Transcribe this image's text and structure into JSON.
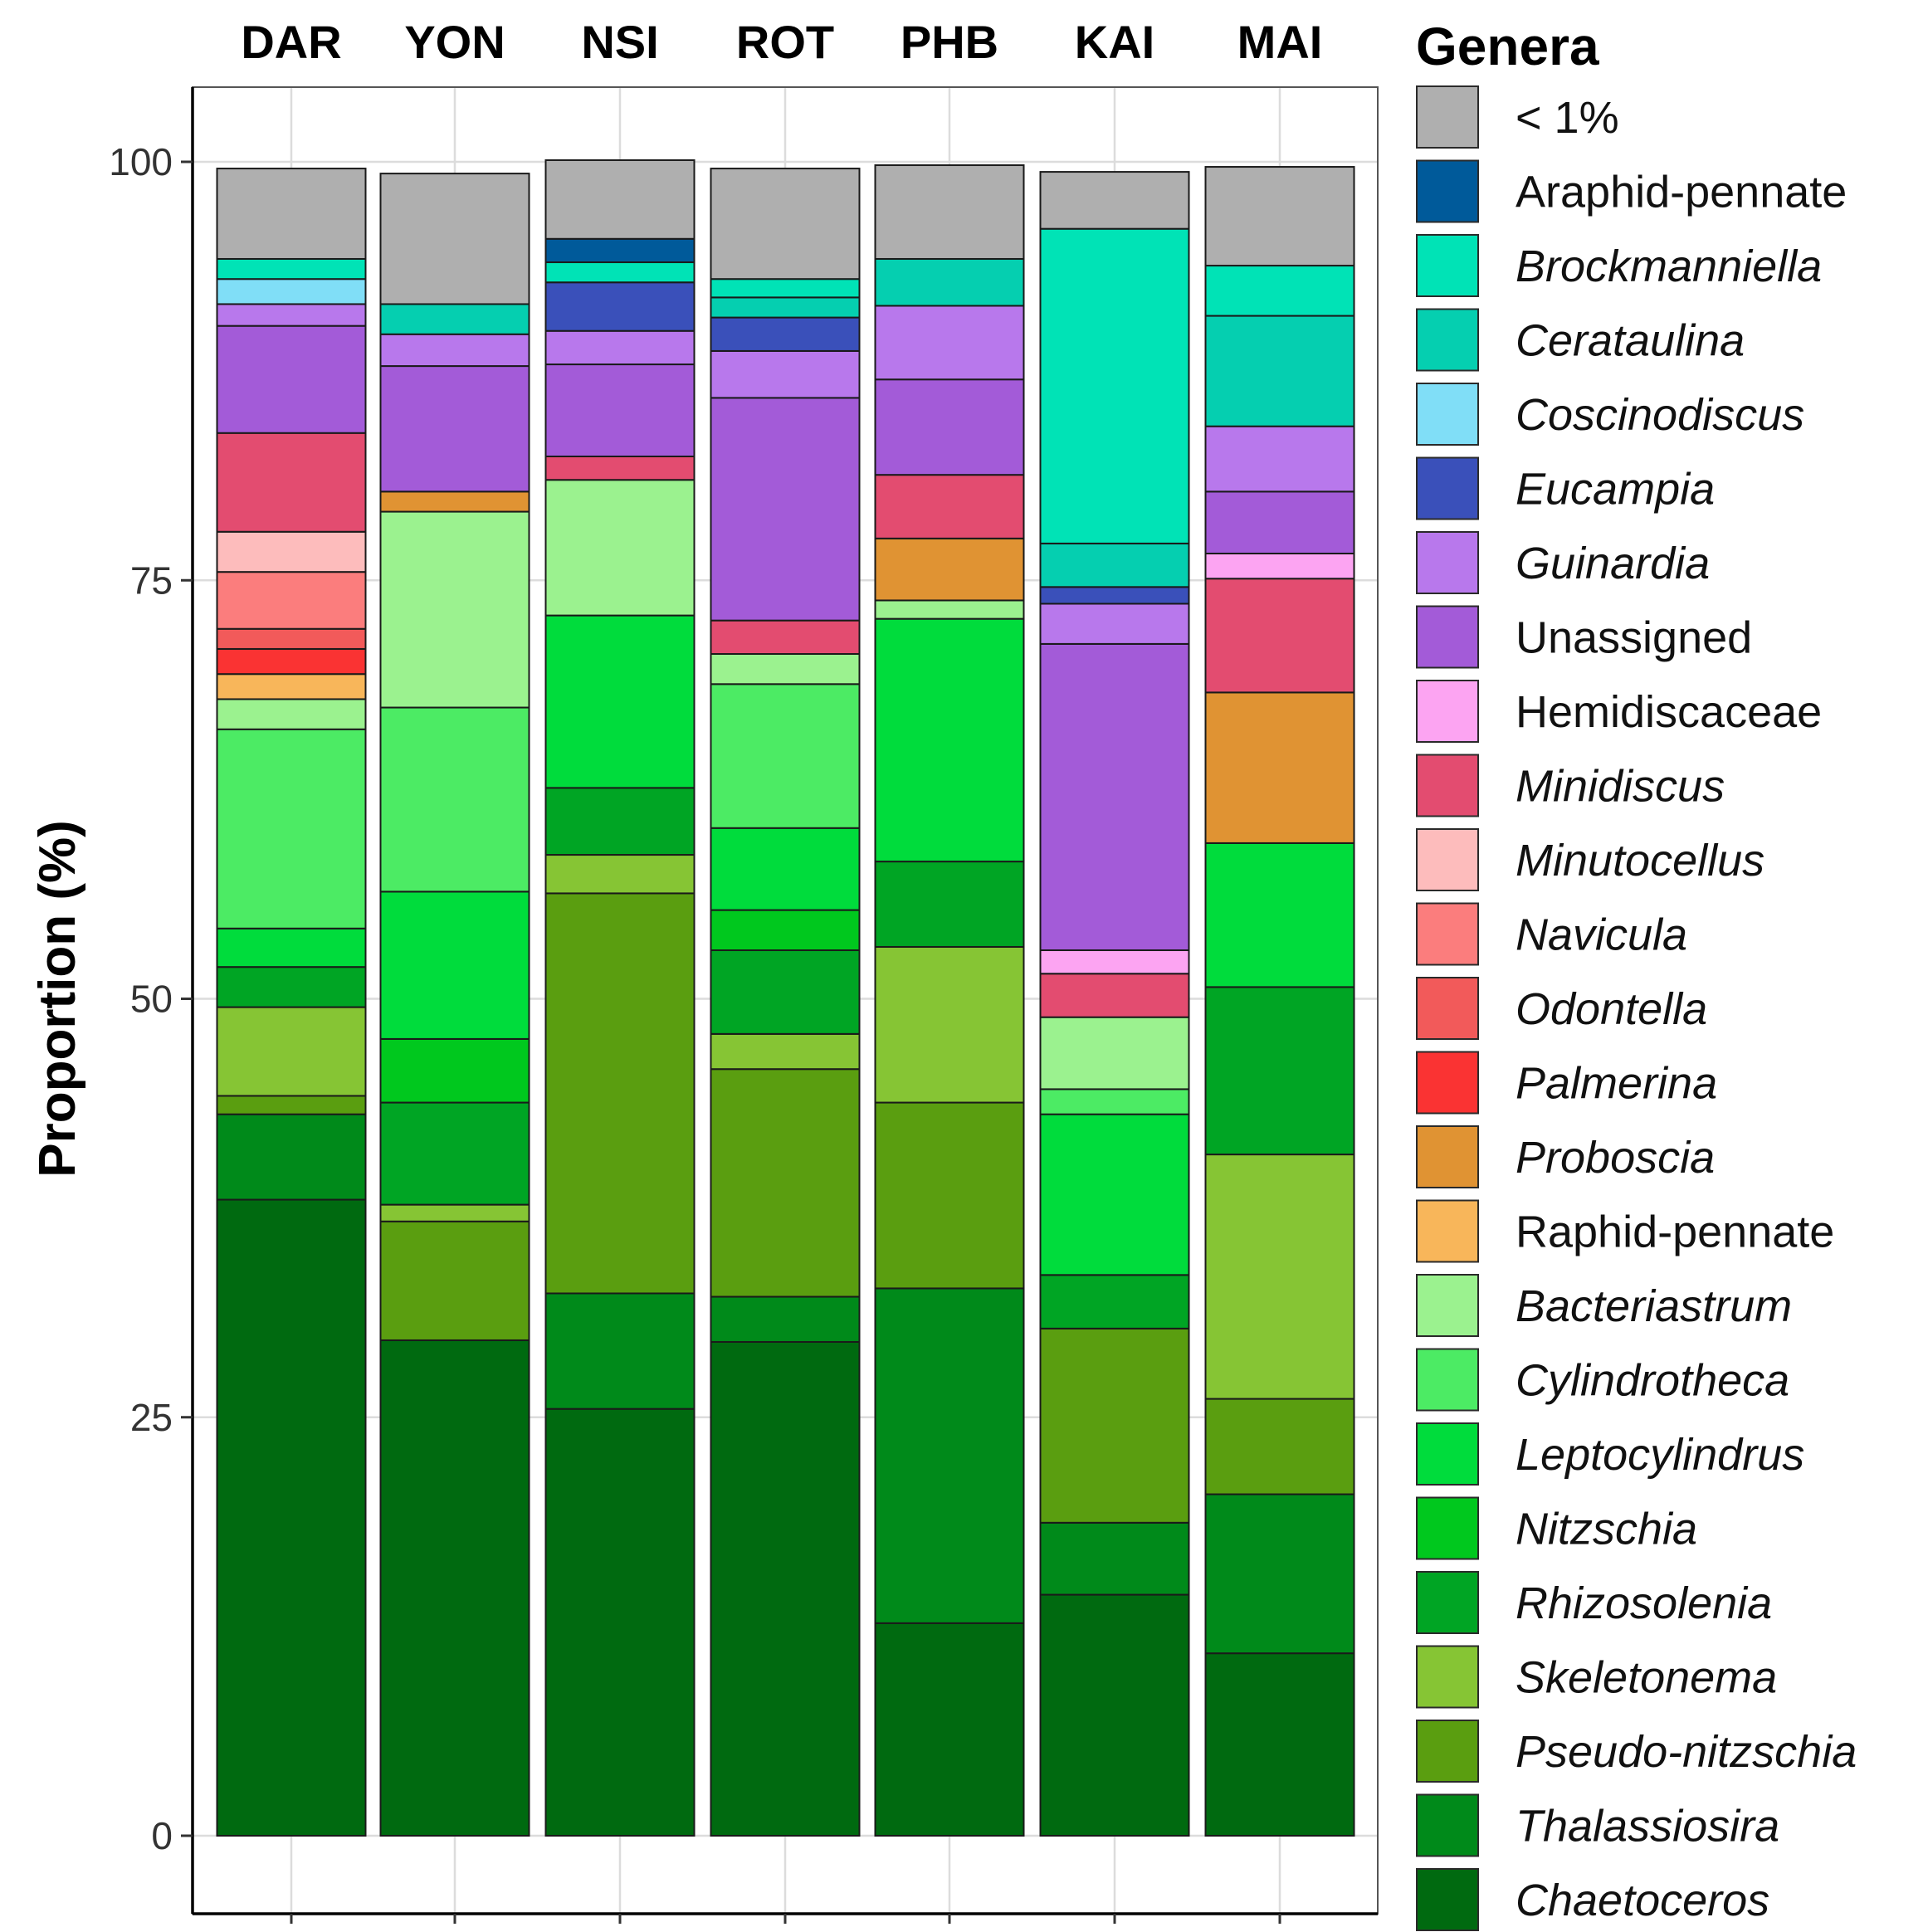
{
  "chart_data": {
    "type": "bar",
    "stacked": true,
    "title": "",
    "xlabel": "",
    "ylabel": "Proportion (%)",
    "ylim": [
      -4.5,
      104.5
    ],
    "yticks": [
      "0",
      "25",
      "50",
      "75",
      "100"
    ],
    "grid": true,
    "legend": {
      "title": "Genera",
      "position": "right"
    },
    "categories": [
      "DAR",
      "YON",
      "NSI",
      "ROT",
      "PHB",
      "KAI",
      "MAI"
    ],
    "series": [
      {
        "name": "Chaetoceros",
        "italic": true,
        "color": "#006a10",
        "values": [
          38.0,
          29.6,
          25.5,
          29.5,
          12.7,
          14.4,
          10.9
        ]
      },
      {
        "name": "Thalassiosira",
        "italic": true,
        "color": "#008a1a",
        "values": [
          5.1,
          0.0,
          6.9,
          2.7,
          20.0,
          4.3,
          9.5
        ]
      },
      {
        "name": "Pseudo-nitzschia",
        "italic": true,
        "color": "#5a9e10",
        "values": [
          1.1,
          7.1,
          23.9,
          13.6,
          11.1,
          11.6,
          5.7
        ]
      },
      {
        "name": "Skeletonema",
        "italic": true,
        "color": "#86c534",
        "values": [
          5.3,
          1.0,
          2.3,
          2.1,
          9.3,
          0.0,
          14.6
        ]
      },
      {
        "name": "Rhizosolenia",
        "italic": true,
        "color": "#00a524",
        "values": [
          2.4,
          6.1,
          4.0,
          5.0,
          5.1,
          3.2,
          10.0
        ]
      },
      {
        "name": "Nitzschia",
        "italic": true,
        "color": "#00c81e",
        "values": [
          0.0,
          3.8,
          0.0,
          2.4,
          0.0,
          0.0,
          0.0
        ]
      },
      {
        "name": "Leptocylindrus",
        "italic": true,
        "color": "#00dc3c",
        "values": [
          2.3,
          8.8,
          10.3,
          4.9,
          14.5,
          9.6,
          8.6
        ]
      },
      {
        "name": "Cylindrotheca",
        "italic": true,
        "color": "#4ceb64",
        "values": [
          11.9,
          11.0,
          0.0,
          8.6,
          0.0,
          1.5,
          0.0
        ]
      },
      {
        "name": "Bacteriastrum",
        "italic": true,
        "color": "#9bf28f",
        "values": [
          1.8,
          11.7,
          8.1,
          1.8,
          1.1,
          4.3,
          0.0
        ]
      },
      {
        "name": "Raphid-pennate",
        "italic": false,
        "color": "#f8b65a",
        "values": [
          1.5,
          0.0,
          0.0,
          0.0,
          0.0,
          0.0,
          0.0
        ]
      },
      {
        "name": "Proboscia",
        "italic": true,
        "color": "#e09333",
        "values": [
          0.0,
          1.2,
          0.0,
          0.0,
          3.7,
          0.0,
          9.0
        ]
      },
      {
        "name": "Palmerina",
        "italic": true,
        "color": "#fa3333",
        "values": [
          1.5,
          0.0,
          0.0,
          0.0,
          0.0,
          0.0,
          0.0
        ]
      },
      {
        "name": "Odontella",
        "italic": true,
        "color": "#f25a5a",
        "values": [
          1.2,
          0.0,
          0.0,
          0.0,
          0.0,
          0.0,
          0.0
        ]
      },
      {
        "name": "Navicula",
        "italic": true,
        "color": "#fb7d7d",
        "values": [
          3.4,
          0.0,
          0.0,
          0.0,
          0.0,
          0.0,
          0.0
        ]
      },
      {
        "name": "Minutocellus",
        "italic": true,
        "color": "#fdbcbc",
        "values": [
          2.4,
          0.0,
          0.0,
          0.0,
          0.0,
          0.0,
          0.0
        ]
      },
      {
        "name": "Minidiscus",
        "italic": true,
        "color": "#e34c70",
        "values": [
          5.9,
          0.0,
          1.4,
          2.0,
          3.8,
          2.6,
          6.8
        ]
      },
      {
        "name": "Hemidiscaceae",
        "italic": false,
        "color": "#fca4f2",
        "values": [
          0.0,
          0.0,
          0.0,
          0.0,
          0.0,
          1.4,
          1.5
        ]
      },
      {
        "name": "Unassigned",
        "italic": false,
        "color": "#a35bd8",
        "values": [
          6.4,
          7.5,
          5.5,
          13.3,
          5.7,
          18.3,
          3.7
        ]
      },
      {
        "name": "Guinardia",
        "italic": true,
        "color": "#b878ec",
        "values": [
          1.3,
          1.9,
          2.0,
          2.8,
          4.4,
          2.4,
          3.9
        ]
      },
      {
        "name": "Eucampia",
        "italic": true,
        "color": "#3a50ba",
        "values": [
          0.0,
          0.0,
          2.9,
          2.0,
          0.0,
          1.0,
          0.0
        ]
      },
      {
        "name": "Coscinodiscus",
        "italic": true,
        "color": "#80def7",
        "values": [
          1.5,
          0.0,
          0.0,
          0.0,
          0.0,
          0.0,
          0.0
        ]
      },
      {
        "name": "Cerataulina",
        "italic": true,
        "color": "#05cfb0",
        "values": [
          0.0,
          1.8,
          0.0,
          1.2,
          2.8,
          2.6,
          6.6
        ]
      },
      {
        "name": "Brockmanniella",
        "italic": true,
        "color": "#00e3b6",
        "values": [
          1.2,
          0.0,
          1.2,
          1.1,
          0.0,
          18.8,
          3.0
        ]
      },
      {
        "name": "Araphid-pennate",
        "italic": false,
        "color": "#005a9a",
        "values": [
          0.0,
          0.0,
          1.4,
          0.0,
          0.0,
          0.0,
          0.0
        ]
      },
      {
        "name": "< 1%",
        "italic": false,
        "color": "#afafaf",
        "values": [
          5.4,
          7.8,
          4.7,
          6.6,
          5.6,
          3.4,
          5.9
        ]
      }
    ]
  }
}
